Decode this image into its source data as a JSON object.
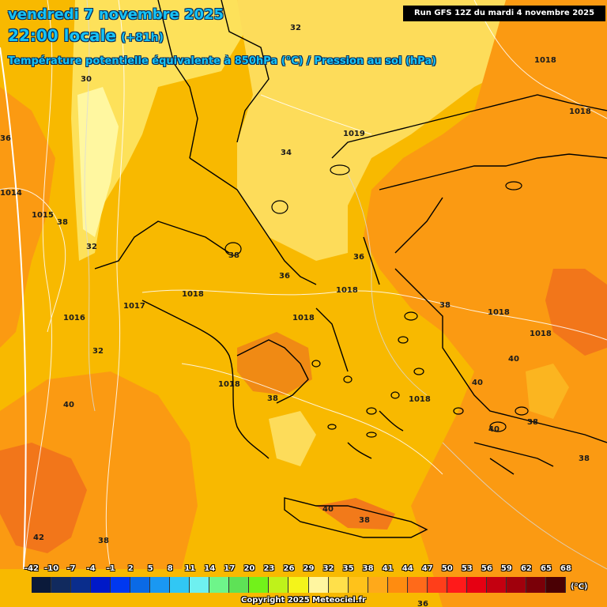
{
  "header": {
    "date": "vendredi 7 novembre 2025",
    "time": "22:00 locale",
    "offset": "(+81h)",
    "variable": "Température potentielle équivalente à 850hPa (°C) / Pression au sol (hPa)",
    "run": "Run GFS 12Z du mardi 4 novembre 2025"
  },
  "map_labels": {
    "pressure": [
      "1018",
      "1018",
      "1019",
      "1014",
      "1015",
      "1017",
      "1016",
      "1018",
      "1018",
      "1018",
      "1018",
      "1018",
      "1018",
      "1018"
    ],
    "theta_e": [
      "32",
      "30",
      "36",
      "34",
      "38",
      "38",
      "32",
      "36",
      "36",
      "32",
      "38",
      "38",
      "38",
      "40",
      "40",
      "40",
      "38",
      "40",
      "40",
      "38",
      "42",
      "38",
      "36"
    ]
  },
  "legend": {
    "ticks": [
      "-42",
      "-10",
      "-7",
      "-4",
      "-1",
      "2",
      "5",
      "8",
      "11",
      "14",
      "17",
      "20",
      "23",
      "26",
      "29",
      "32",
      "35",
      "38",
      "41",
      "44",
      "47",
      "50",
      "53",
      "56",
      "59",
      "62",
      "65",
      "68"
    ],
    "colors": [
      "#0b1a3a",
      "#112a5e",
      "#0a2d8c",
      "#0019c8",
      "#0038f0",
      "#0a6ae6",
      "#1a98f2",
      "#31c7f4",
      "#6ef0f0",
      "#6ef58a",
      "#5ee256",
      "#72f21a",
      "#bff21a",
      "#f4f41a",
      "#fff6a0",
      "#ffe04a",
      "#ffc21a",
      "#ffa91a",
      "#ff8c10",
      "#ff6a1a",
      "#ff3e1a",
      "#ff1a1a",
      "#e60012",
      "#c40010",
      "#a0000c",
      "#7a0008",
      "#4a0004"
    ],
    "unit": "(°C)"
  },
  "copyright": "Copyright 2025 Meteociel.fr"
}
